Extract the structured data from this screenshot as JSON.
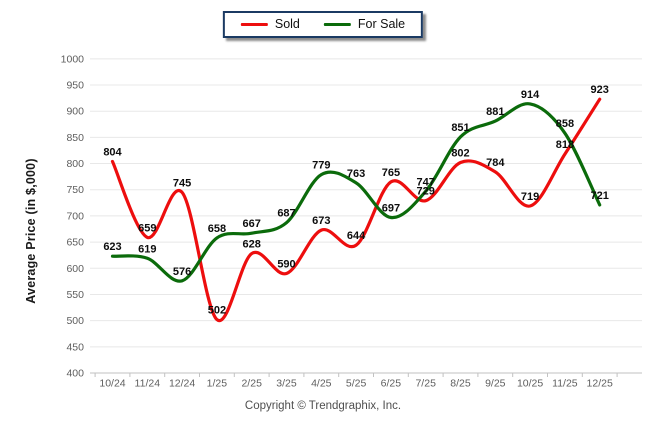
{
  "legend": {
    "items": [
      {
        "label": "Sold",
        "color": "#ed0e0e"
      },
      {
        "label": "For Sale",
        "color": "#0b6b0b"
      }
    ]
  },
  "chart_data": {
    "type": "line",
    "title": "",
    "xlabel": "",
    "ylabel": "Average Price (in $,000)",
    "ylim": [
      400,
      1000
    ],
    "ytick_step": 50,
    "grid": true,
    "legend_position": "top-center",
    "categories": [
      "10/24",
      "11/24",
      "12/24",
      "1/25",
      "2/25",
      "3/25",
      "4/25",
      "5/25",
      "6/25",
      "7/25",
      "8/25",
      "9/25",
      "10/25",
      "11/25",
      "12/25"
    ],
    "series": [
      {
        "name": "Sold",
        "color": "#ed0e0e",
        "values": [
          804,
          659,
          745,
          502,
          628,
          590,
          673,
          644,
          765,
          729,
          802,
          784,
          719,
          818,
          923
        ]
      },
      {
        "name": "For Sale",
        "color": "#0b6b0b",
        "values": [
          623,
          619,
          576,
          658,
          667,
          687,
          779,
          763,
          697,
          747,
          851,
          881,
          914,
          858,
          721
        ]
      }
    ]
  },
  "footer": {
    "copyright": "Copyright © Trendgraphix, Inc."
  }
}
